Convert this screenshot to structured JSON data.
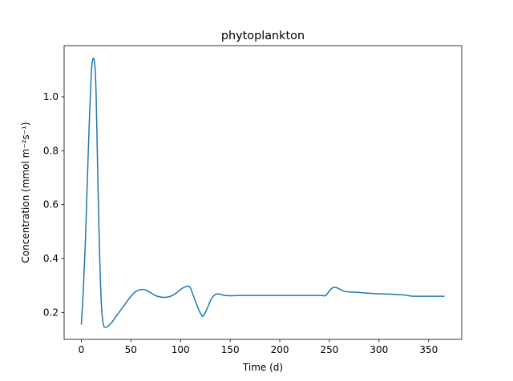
{
  "chart_data": {
    "type": "line",
    "title": "phytoplankton",
    "xlabel": "Time (d)",
    "ylabel": "Concentration (mmol m⁻²s⁻¹)",
    "xlim": [
      -17.3,
      383.3
    ],
    "ylim": [
      0.1,
      1.19
    ],
    "xticks": [
      0,
      50,
      100,
      150,
      200,
      250,
      300,
      350
    ],
    "xtick_labels": [
      "0",
      "50",
      "100",
      "150",
      "200",
      "250",
      "300",
      "350"
    ],
    "yticks": [
      0.2,
      0.4,
      0.6,
      0.8,
      1.0
    ],
    "ytick_labels": [
      "0.2",
      "0.4",
      "0.6",
      "0.8",
      "1.0"
    ],
    "grid": false,
    "color": "#1f77b4",
    "series": [
      {
        "x": [
          0,
          2,
          4,
          6,
          8,
          10,
          11,
          12,
          13,
          14,
          15,
          16,
          18,
          20,
          22,
          25,
          30,
          35,
          40,
          45,
          50,
          55,
          60,
          65,
          70,
          75,
          80,
          85,
          90,
          95,
          100,
          104,
          108,
          110,
          113,
          116,
          119,
          122,
          123,
          125,
          128,
          131,
          134,
          137,
          140,
          145,
          150,
          160,
          180,
          200,
          220,
          240,
          243,
          245,
          247,
          250,
          253,
          256,
          259,
          262,
          265,
          270,
          280,
          290,
          300,
          310,
          320,
          325,
          330,
          335,
          340,
          350,
          360,
          366
        ],
        "y": [
          0.155,
          0.28,
          0.45,
          0.68,
          0.9,
          1.08,
          1.128,
          1.143,
          1.135,
          1.1,
          1.0,
          0.82,
          0.48,
          0.25,
          0.16,
          0.145,
          0.16,
          0.185,
          0.21,
          0.235,
          0.26,
          0.278,
          0.285,
          0.283,
          0.273,
          0.262,
          0.257,
          0.256,
          0.26,
          0.27,
          0.285,
          0.294,
          0.297,
          0.29,
          0.262,
          0.232,
          0.205,
          0.186,
          0.188,
          0.2,
          0.225,
          0.25,
          0.264,
          0.269,
          0.267,
          0.263,
          0.262,
          0.263,
          0.263,
          0.263,
          0.263,
          0.263,
          0.263,
          0.261,
          0.265,
          0.28,
          0.291,
          0.293,
          0.289,
          0.283,
          0.278,
          0.276,
          0.274,
          0.271,
          0.269,
          0.268,
          0.266,
          0.265,
          0.262,
          0.26,
          0.26,
          0.26,
          0.26,
          0.26
        ]
      }
    ]
  }
}
